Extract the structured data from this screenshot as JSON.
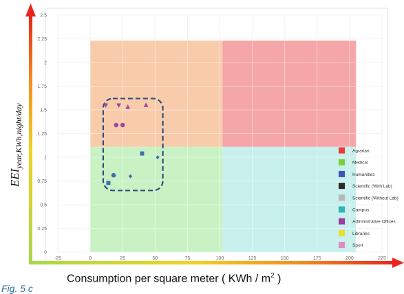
{
  "figure_label": "Fig. 5 c",
  "x_title_text": "Consumption per square meter    ( KWh / m",
  "x_title_sup": "2",
  "x_title_close": " )",
  "y_title_main": "EEI",
  "y_title_sub": "year,KWh,night/day",
  "chart_data": {
    "type": "scatter",
    "title": "",
    "xlabel": "Consumption per square meter ( KWh / m2 )",
    "ylabel": "EEI year,KWh,night/day",
    "xlim": [
      -25,
      225
    ],
    "ylim": [
      0,
      2.5
    ],
    "xticks": [
      -25,
      0,
      25,
      50,
      75,
      100,
      125,
      150,
      175,
      200,
      225
    ],
    "yticks": [
      0,
      0.25,
      0.5,
      0.75,
      1,
      1.25,
      1.5,
      1.75,
      2,
      2.25,
      2.5
    ],
    "grid": true,
    "quadrants": [
      {
        "x": [
          0,
          102
        ],
        "y": [
          1.11,
          2.23
        ],
        "color": "#f8ccaa"
      },
      {
        "x": [
          102,
          205
        ],
        "y": [
          1.11,
          2.23
        ],
        "color": "#f5a6a8"
      },
      {
        "x": [
          0,
          102
        ],
        "y": [
          0,
          1.11
        ],
        "color": "#c9f2c4"
      },
      {
        "x": [
          102,
          205
        ],
        "y": [
          0,
          1.11
        ],
        "color": "#c8f0ec"
      }
    ],
    "highlight_box": {
      "x": [
        10,
        56
      ],
      "y": [
        0.65,
        1.62
      ],
      "color": "#2e4e7e"
    },
    "points": [
      {
        "x": 12,
        "y": 1.55,
        "marker": "triangle-down",
        "color": "#9b49a0"
      },
      {
        "x": 22,
        "y": 1.55,
        "marker": "triangle-down",
        "color": "#9b49a0"
      },
      {
        "x": 29,
        "y": 1.53,
        "marker": "triangle",
        "color": "#9b49a0"
      },
      {
        "x": 43,
        "y": 1.55,
        "marker": "triangle",
        "color": "#9b49a0"
      },
      {
        "x": 20,
        "y": 1.34,
        "marker": "circle",
        "color": "#9b49a0"
      },
      {
        "x": 25,
        "y": 1.34,
        "marker": "circle",
        "color": "#9b49a0"
      },
      {
        "x": 40,
        "y": 1.04,
        "marker": "square",
        "color": "#3b6fb0"
      },
      {
        "x": 52,
        "y": 1.0,
        "marker": "diamond",
        "color": "#3b6fb0"
      },
      {
        "x": 18,
        "y": 0.81,
        "marker": "circle",
        "color": "#3b6fb0"
      },
      {
        "x": 31,
        "y": 0.8,
        "marker": "diamond",
        "color": "#3b6fb0"
      },
      {
        "x": 14,
        "y": 0.73,
        "marker": "square",
        "color": "#3b6fb0"
      }
    ],
    "legend_position": "bottom-right",
    "legend": [
      {
        "label": "Agrarian",
        "color": "#e83a3a"
      },
      {
        "label": "Medical",
        "color": "#7ccb3a"
      },
      {
        "label": "Humanities",
        "color": "#3d56b5"
      },
      {
        "label": "Scientific (With Lab)",
        "color": "#2b2b2b"
      },
      {
        "label": "Scientific (Without Lab)",
        "color": "#b8b8b8"
      },
      {
        "label": "Campus",
        "color": "#2fb5b0"
      },
      {
        "label": "Administrative Offices",
        "color": "#a03aa2"
      },
      {
        "label": "Libraries",
        "color": "#e8dd35"
      },
      {
        "label": "Sport",
        "color": "#e08ac4"
      }
    ]
  }
}
